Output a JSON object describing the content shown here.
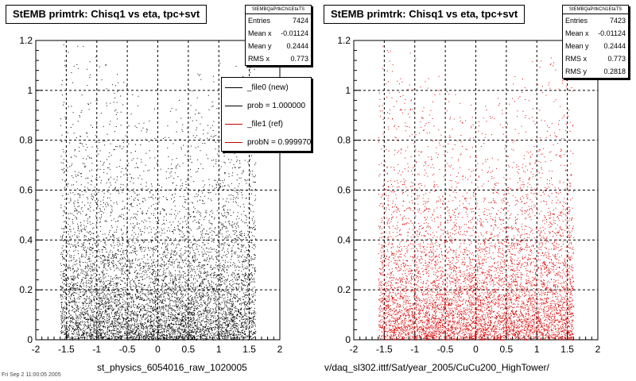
{
  "left_panel": {
    "title": "StEMB primtrk: Chisq1 vs eta, tpc+svt",
    "stats": {
      "name": "StEMBQaPrtkChi1EtaTS",
      "rows": [
        {
          "label": "Entries",
          "value": "7424"
        },
        {
          "label": "Mean x",
          "value": "-0.01124"
        },
        {
          "label": "Mean y",
          "value": "0.2444"
        },
        {
          "label": "RMS x",
          "value": "0.773"
        }
      ]
    },
    "legend": [
      {
        "label": "_file0 (new)",
        "color": "#000000"
      },
      {
        "label": "prob = 1.000000",
        "color": "#000000"
      },
      {
        "label": "_file1 (ref)",
        "color": "#cc0000"
      },
      {
        "label": "probN = 0.999970",
        "color": "#cc0000"
      }
    ],
    "x_file_label": "st_physics_6054016_raw_1020005",
    "corner_text": "Fri Sep 2 11:00:05 2005"
  },
  "right_panel": {
    "title": "StEMB primtrk: Chisq1 vs eta, tpc+svt",
    "stats": {
      "name": "StEMBQaPrtkChi1EtaTS",
      "rows": [
        {
          "label": "Entries",
          "value": "7423"
        },
        {
          "label": "Mean x",
          "value": "-0.01124"
        },
        {
          "label": "Mean y",
          "value": "0.2444"
        },
        {
          "label": "RMS x",
          "value": "0.773"
        },
        {
          "label": "RMS y",
          "value": "0.2818"
        }
      ]
    },
    "x_file_label": "v/daq_sl302.ittf/Sat/year_2005/CuCu200_HighTower/"
  },
  "chart_data": [
    {
      "type": "scatter",
      "title": "StEMB primtrk: Chisq1 vs eta, tpc+svt",
      "xlabel": "st_physics_6054016_raw_1020005",
      "ylabel": "",
      "xlim": [
        -2,
        2
      ],
      "ylim": [
        0,
        1.2
      ],
      "x_ticks": [
        "-2",
        "-1.5",
        "-1",
        "-0.5",
        "0",
        "0.5",
        "1",
        "1.5",
        "2"
      ],
      "y_ticks": [
        "0",
        "0.2",
        "0.4",
        "0.6",
        "0.8",
        "1",
        "1.2"
      ],
      "grid": true,
      "legend_position": "top-right",
      "series": [
        {
          "name": "_file0 (new)",
          "color": "#000000",
          "entries": 7424,
          "mean_x": -0.01124,
          "mean_y": 0.2444,
          "rms_x": 0.773,
          "eta_range": [
            -1.6,
            1.6
          ]
        }
      ]
    },
    {
      "type": "scatter",
      "title": "StEMB primtrk: Chisq1 vs eta, tpc+svt",
      "xlabel": "v/daq_sl302.ittf/Sat/year_2005/CuCu200_HighTower/",
      "ylabel": "",
      "xlim": [
        -2,
        2
      ],
      "ylim": [
        0,
        1.2
      ],
      "x_ticks": [
        "-2",
        "-1.5",
        "-1",
        "-0.5",
        "0",
        "0.5",
        "1",
        "1.5",
        "2"
      ],
      "y_ticks": [
        "0",
        "0.2",
        "0.4",
        "0.6",
        "0.8",
        "1",
        "1.2"
      ],
      "grid": true,
      "series": [
        {
          "name": "_file1 (ref)",
          "color": "#dd0000",
          "entries": 7423,
          "mean_x": -0.01124,
          "mean_y": 0.2444,
          "rms_x": 0.773,
          "rms_y": 0.2818,
          "eta_range": [
            -1.6,
            1.6
          ]
        }
      ]
    }
  ]
}
